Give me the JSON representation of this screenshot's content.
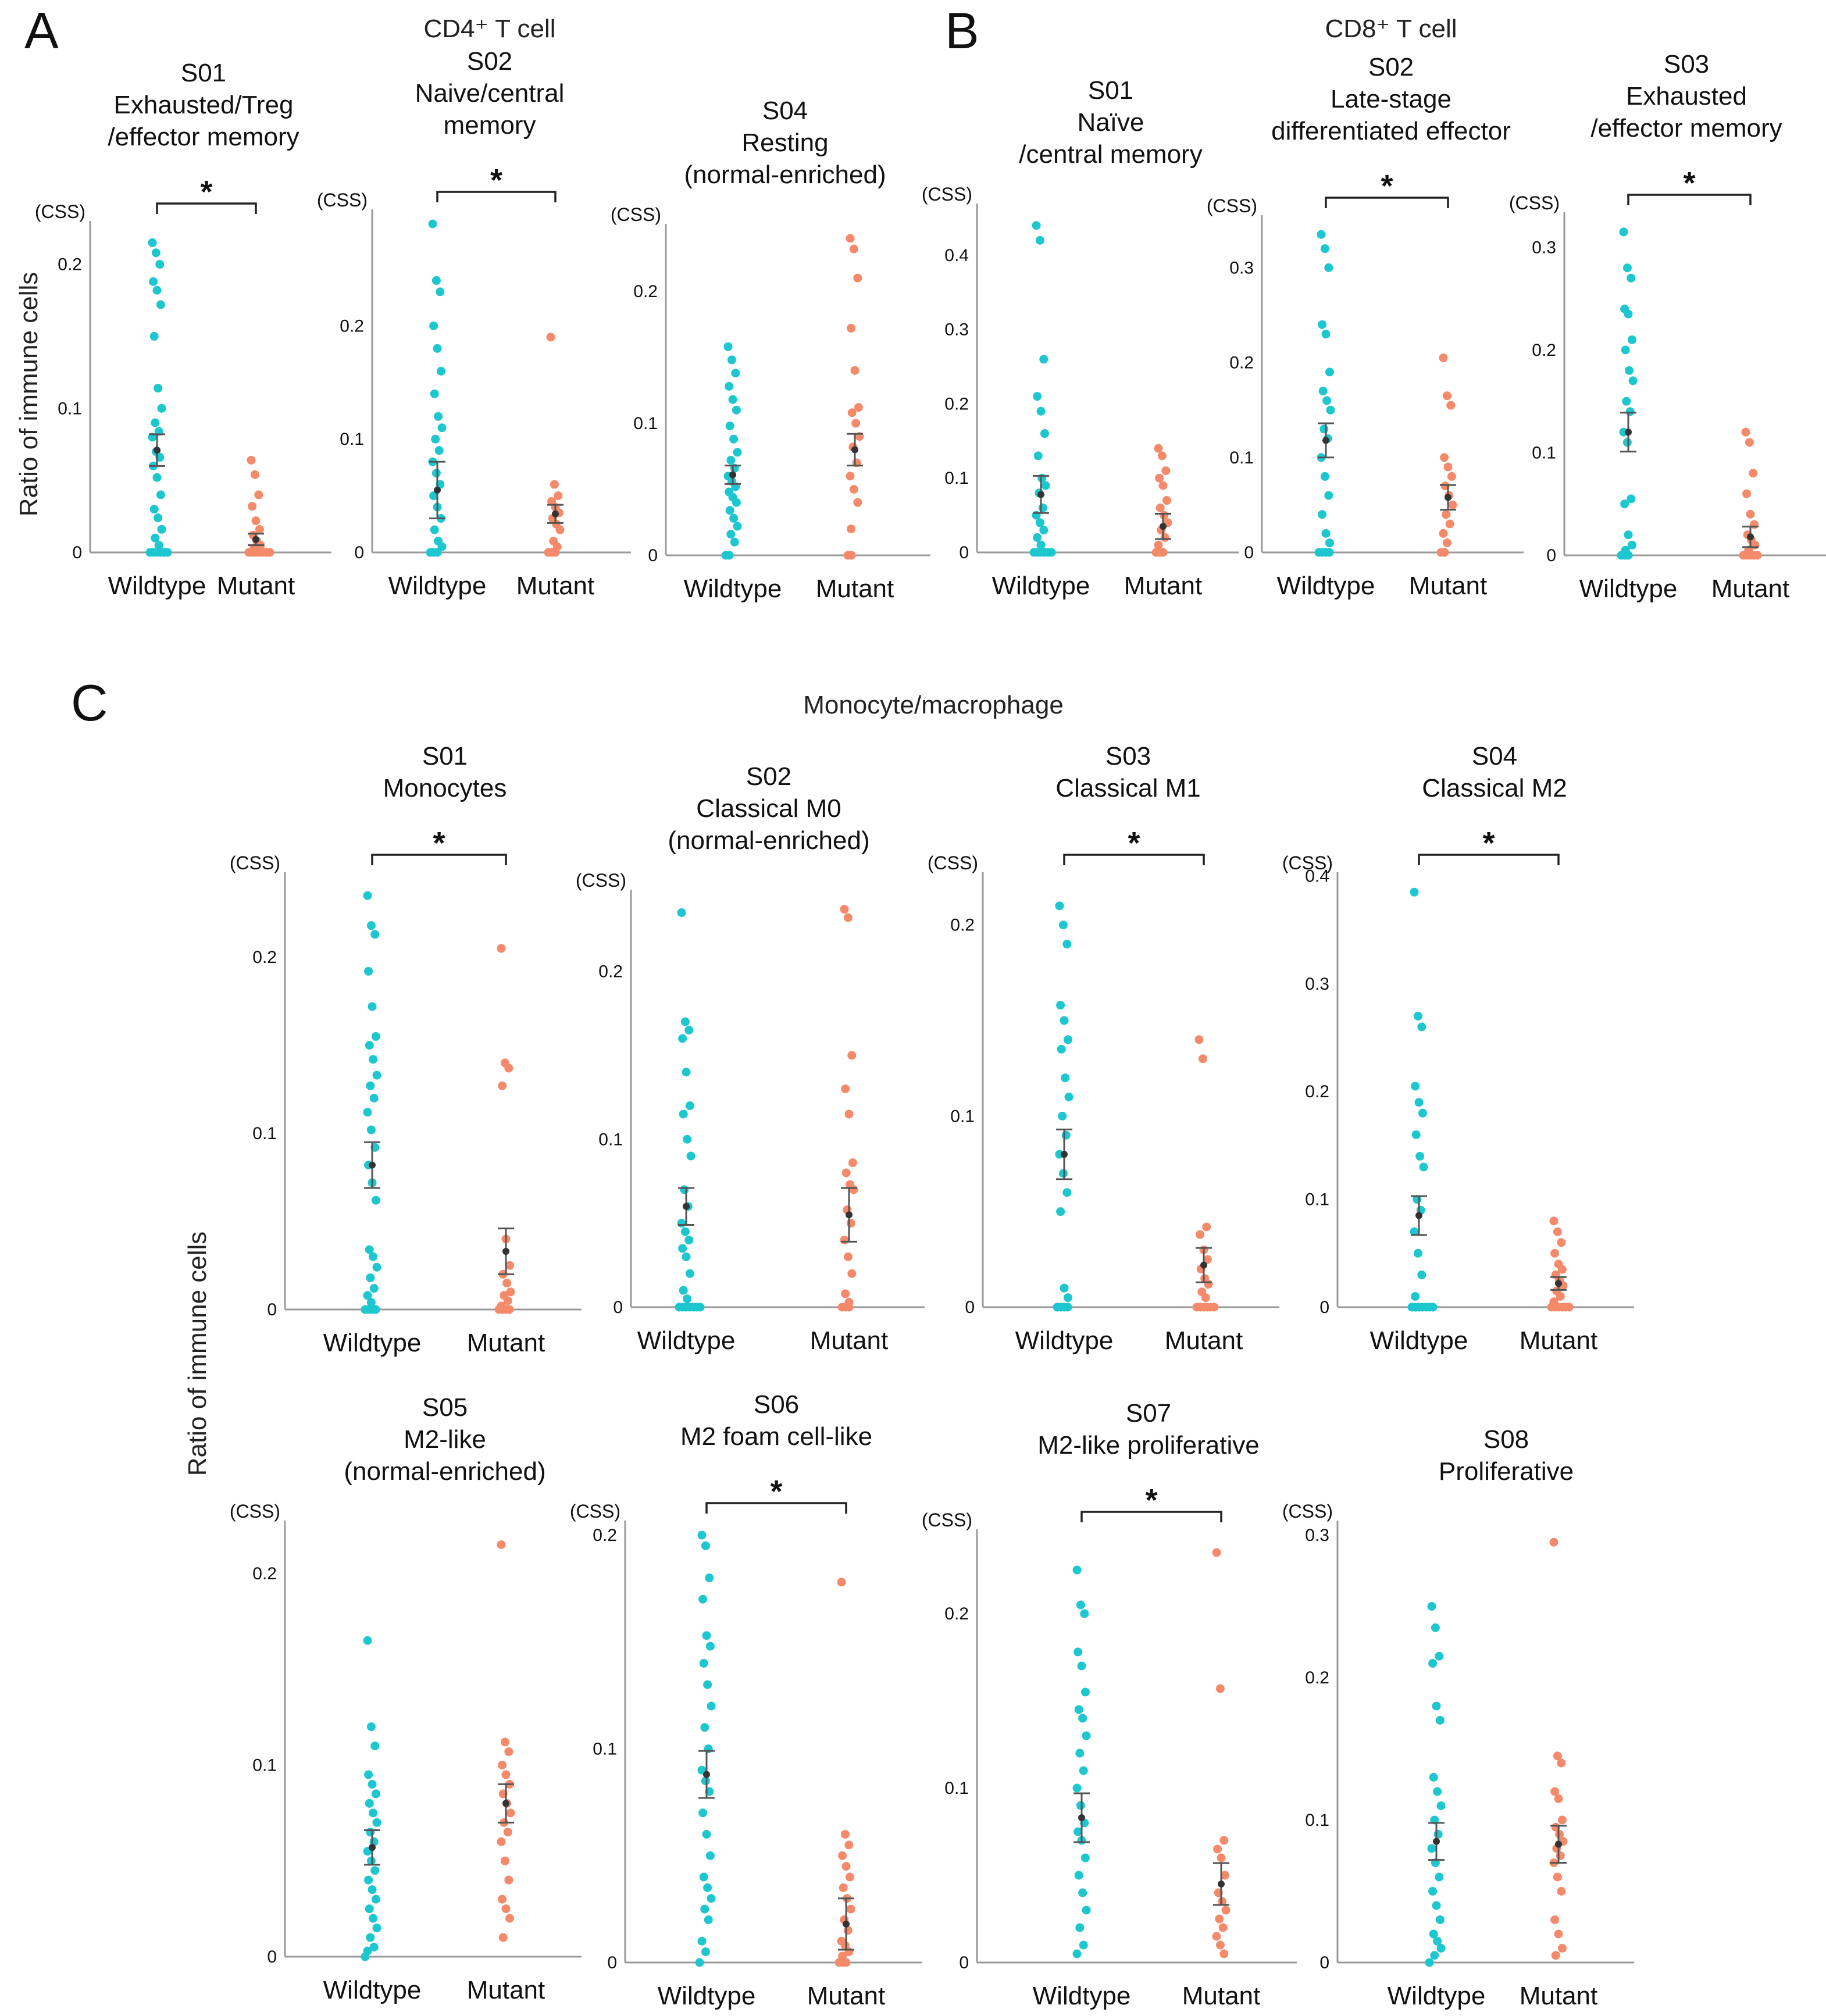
{
  "figure": {
    "panel_letters": [
      "A",
      "B",
      "C"
    ],
    "group_titles": [
      "CD4⁺ T cell",
      "CD8⁺ T cell",
      "Monocyte/macrophage"
    ],
    "y_axis_title": "Ratio of immune cells",
    "unit_label": "(CSS)",
    "categories": [
      "Wildtype",
      "Mutant"
    ],
    "significance_marker": "*",
    "colors": {
      "wildtype": "#1cc7cf",
      "mutant": "#f58a6b",
      "axis": "#999999",
      "errorbar": "#555555"
    }
  },
  "chart_data": [
    {
      "type": "scatter",
      "group": "CD4+ T cell",
      "title": [
        "S01",
        "Exhausted/Treg",
        "/effector memory"
      ],
      "ylim": [
        0,
        0.22
      ],
      "yticks": [
        {
          "v": 0,
          "l": "0"
        },
        {
          "v": 0.1,
          "l": "0.1"
        },
        {
          "v": 0.2,
          "l": "0.2"
        }
      ],
      "significant": true,
      "wildtype": {
        "points": [
          0.215,
          0.208,
          0.2,
          0.188,
          0.182,
          0.172,
          0.15,
          0.114,
          0.1,
          0.09,
          0.084,
          0.08,
          0.07,
          0.066,
          0.06,
          0.052,
          0.04,
          0.03,
          0.024,
          0.016,
          0.01,
          0.005,
          0,
          0,
          0,
          0,
          0,
          0
        ],
        "mean": 0.071,
        "se": 0.011
      },
      "mutant": {
        "points": [
          0.064,
          0.054,
          0.04,
          0.032,
          0.022,
          0.016,
          0.012,
          0.008,
          0.005,
          0.003,
          0,
          0,
          0,
          0,
          0,
          0,
          0,
          0
        ],
        "mean": 0.009,
        "se": 0.004
      }
    },
    {
      "type": "scatter",
      "group": "CD4+ T cell",
      "title": [
        "S02",
        "Naive/central",
        "memory"
      ],
      "ylim": [
        0,
        0.29
      ],
      "yticks": [
        {
          "v": 0,
          "l": "0"
        },
        {
          "v": 0.1,
          "l": "0.1"
        },
        {
          "v": 0.2,
          "l": "0.2"
        }
      ],
      "significant": true,
      "wildtype": {
        "points": [
          0.29,
          0.24,
          0.23,
          0.2,
          0.18,
          0.16,
          0.14,
          0.12,
          0.11,
          0.1,
          0.09,
          0.08,
          0.07,
          0.06,
          0.05,
          0.04,
          0.03,
          0.02,
          0.01,
          0.005,
          0,
          0,
          0
        ],
        "mean": 0.055,
        "se": 0.025
      },
      "mutant": {
        "points": [
          0.19,
          0.06,
          0.05,
          0.045,
          0.04,
          0.035,
          0.03,
          0.025,
          0.02,
          0.01,
          0.005,
          0,
          0,
          0
        ],
        "mean": 0.034,
        "se": 0.008
      }
    },
    {
      "type": "scatter",
      "group": "CD4+ T cell",
      "title": [
        "S04",
        "Resting",
        "(normal-enriched)"
      ],
      "ylim": [
        0,
        0.24
      ],
      "yticks": [
        {
          "v": 0,
          "l": "0"
        },
        {
          "v": 0.1,
          "l": "0.1"
        },
        {
          "v": 0.2,
          "l": "0.2"
        }
      ],
      "significant": false,
      "wildtype": {
        "points": [
          0.158,
          0.148,
          0.138,
          0.128,
          0.118,
          0.11,
          0.098,
          0.088,
          0.078,
          0.072,
          0.066,
          0.06,
          0.056,
          0.052,
          0.048,
          0.044,
          0.04,
          0.034,
          0.028,
          0.022,
          0.016,
          0.01,
          0,
          0
        ],
        "mean": 0.061,
        "se": 0.007
      },
      "mutant": {
        "points": [
          0.24,
          0.232,
          0.21,
          0.172,
          0.14,
          0.112,
          0.108,
          0.1,
          0.09,
          0.082,
          0.07,
          0.06,
          0.05,
          0.04,
          0.02,
          0,
          0
        ],
        "mean": 0.08,
        "se": 0.012
      }
    },
    {
      "type": "scatter",
      "group": "CD8+ T cell",
      "title": [
        "S01",
        "Naïve",
        "/central memory"
      ],
      "ylim": [
        0,
        0.45
      ],
      "yticks": [
        {
          "v": 0,
          "l": "0"
        },
        {
          "v": 0.1,
          "l": "0.1"
        },
        {
          "v": 0.2,
          "l": "0.2"
        },
        {
          "v": 0.3,
          "l": "0.3"
        },
        {
          "v": 0.4,
          "l": "0.4"
        }
      ],
      "significant": false,
      "wildtype": {
        "points": [
          0.44,
          0.42,
          0.26,
          0.21,
          0.19,
          0.16,
          0.13,
          0.1,
          0.09,
          0.08,
          0.06,
          0.05,
          0.04,
          0.03,
          0.02,
          0.01,
          0,
          0,
          0,
          0,
          0,
          0
        ],
        "mean": 0.078,
        "se": 0.025
      },
      "mutant": {
        "points": [
          0.14,
          0.13,
          0.11,
          0.1,
          0.09,
          0.07,
          0.06,
          0.05,
          0.04,
          0.03,
          0.02,
          0.01,
          0,
          0,
          0
        ],
        "mean": 0.035,
        "se": 0.017
      }
    },
    {
      "type": "scatter",
      "group": "CD8+ T cell",
      "title": [
        "S02",
        "Late-stage",
        "differentiated effector"
      ],
      "ylim": [
        0,
        0.34
      ],
      "yticks": [
        {
          "v": 0,
          "l": "0"
        },
        {
          "v": 0.1,
          "l": "0.1"
        },
        {
          "v": 0.2,
          "l": "0.2"
        },
        {
          "v": 0.3,
          "l": "0.3"
        }
      ],
      "significant": true,
      "wildtype": {
        "points": [
          0.335,
          0.32,
          0.3,
          0.24,
          0.23,
          0.19,
          0.17,
          0.16,
          0.15,
          0.13,
          0.12,
          0.1,
          0.08,
          0.06,
          0.04,
          0.02,
          0.01,
          0,
          0,
          0,
          0
        ],
        "mean": 0.118,
        "se": 0.018
      },
      "mutant": {
        "points": [
          0.205,
          0.165,
          0.155,
          0.1,
          0.09,
          0.08,
          0.07,
          0.06,
          0.05,
          0.04,
          0.03,
          0.02,
          0.01,
          0,
          0
        ],
        "mean": 0.058,
        "se": 0.013
      }
    },
    {
      "type": "scatter",
      "group": "CD8+ T cell",
      "title": [
        "S03",
        "Exhausted",
        "/effector memory"
      ],
      "ylim": [
        0,
        0.32
      ],
      "yticks": [
        {
          "v": 0,
          "l": "0"
        },
        {
          "v": 0.1,
          "l": "0.1"
        },
        {
          "v": 0.2,
          "l": "0.2"
        },
        {
          "v": 0.3,
          "l": "0.3"
        }
      ],
      "significant": true,
      "wildtype": {
        "points": [
          0.315,
          0.28,
          0.27,
          0.24,
          0.235,
          0.21,
          0.2,
          0.18,
          0.17,
          0.15,
          0.14,
          0.12,
          0.11,
          0.055,
          0.05,
          0.02,
          0.01,
          0.005,
          0,
          0,
          0
        ],
        "mean": 0.12,
        "se": 0.019
      },
      "mutant": {
        "points": [
          0.12,
          0.11,
          0.08,
          0.06,
          0.04,
          0.03,
          0.02,
          0.015,
          0.01,
          0.005,
          0,
          0,
          0,
          0,
          0
        ],
        "mean": 0.018,
        "se": 0.01
      }
    },
    {
      "type": "scatter",
      "group": "Monocyte/macrophage",
      "title": [
        "S01",
        "Monocytes"
      ],
      "ylim": [
        0,
        0.24
      ],
      "yticks": [
        {
          "v": 0,
          "l": "0"
        },
        {
          "v": 0.1,
          "l": "0.1"
        },
        {
          "v": 0.2,
          "l": "0.2"
        }
      ],
      "significant": true,
      "wildtype": {
        "points": [
          0.235,
          0.218,
          0.213,
          0.192,
          0.172,
          0.155,
          0.15,
          0.142,
          0.133,
          0.127,
          0.12,
          0.112,
          0.102,
          0.092,
          0.082,
          0.072,
          0.062,
          0.034,
          0.03,
          0.024,
          0.018,
          0.012,
          0.008,
          0.004,
          0,
          0,
          0,
          0
        ],
        "mean": 0.082,
        "se": 0.013
      },
      "mutant": {
        "points": [
          0.205,
          0.14,
          0.137,
          0.127,
          0.04,
          0.025,
          0.02,
          0.015,
          0.01,
          0.008,
          0.005,
          0.002,
          0,
          0,
          0,
          0
        ],
        "mean": 0.033,
        "se": 0.013
      }
    },
    {
      "type": "scatter",
      "group": "Monocyte/macrophage",
      "title": [
        "S02",
        "Classical M0",
        "(normal-enriched)"
      ],
      "ylim": [
        0,
        0.24
      ],
      "yticks": [
        {
          "v": 0,
          "l": "0"
        },
        {
          "v": 0.1,
          "l": "0.1"
        },
        {
          "v": 0.2,
          "l": "0.2"
        }
      ],
      "significant": false,
      "wildtype": {
        "points": [
          0.235,
          0.17,
          0.165,
          0.16,
          0.14,
          0.12,
          0.115,
          0.1,
          0.09,
          0.07,
          0.06,
          0.05,
          0.045,
          0.04,
          0.035,
          0.03,
          0.02,
          0.01,
          0.005,
          0,
          0,
          0,
          0,
          0,
          0,
          0
        ],
        "mean": 0.06,
        "se": 0.011
      },
      "mutant": {
        "points": [
          0.237,
          0.232,
          0.15,
          0.13,
          0.115,
          0.086,
          0.08,
          0.073,
          0.07,
          0.058,
          0.05,
          0.04,
          0.03,
          0.02,
          0.008,
          0.003,
          0,
          0,
          0
        ],
        "mean": 0.055,
        "se": 0.016
      }
    },
    {
      "type": "scatter",
      "group": "Monocyte/macrophage",
      "title": [
        "S03",
        "Classical M1"
      ],
      "ylim": [
        0,
        0.22
      ],
      "yticks": [
        {
          "v": 0,
          "l": "0"
        },
        {
          "v": 0.1,
          "l": "0.1"
        },
        {
          "v": 0.2,
          "l": "0.2"
        }
      ],
      "significant": true,
      "wildtype": {
        "points": [
          0.21,
          0.2,
          0.19,
          0.158,
          0.15,
          0.14,
          0.135,
          0.12,
          0.11,
          0.1,
          0.09,
          0.08,
          0.07,
          0.06,
          0.05,
          0.01,
          0.005,
          0,
          0,
          0,
          0
        ],
        "mean": 0.08,
        "se": 0.013
      },
      "mutant": {
        "points": [
          0.14,
          0.13,
          0.042,
          0.038,
          0.03,
          0.025,
          0.02,
          0.015,
          0.012,
          0.008,
          0.005,
          0,
          0,
          0,
          0,
          0,
          0
        ],
        "mean": 0.022,
        "se": 0.009
      }
    },
    {
      "type": "scatter",
      "group": "Monocyte/macrophage",
      "title": [
        "S04",
        "Classical M2"
      ],
      "ylim": [
        0,
        0.39
      ],
      "yticks": [
        {
          "v": 0,
          "l": "0"
        },
        {
          "v": 0.1,
          "l": "0.1"
        },
        {
          "v": 0.2,
          "l": "0.2"
        },
        {
          "v": 0.3,
          "l": "0.3"
        },
        {
          "v": 0.4,
          "l": "0.4"
        }
      ],
      "significant": true,
      "wildtype": {
        "points": [
          0.385,
          0.27,
          0.26,
          0.205,
          0.19,
          0.18,
          0.16,
          0.14,
          0.13,
          0.1,
          0.09,
          0.07,
          0.05,
          0.03,
          0.01,
          0,
          0,
          0,
          0,
          0,
          0,
          0,
          0,
          0
        ],
        "mean": 0.085,
        "se": 0.018
      },
      "mutant": {
        "points": [
          0.08,
          0.07,
          0.06,
          0.05,
          0.04,
          0.035,
          0.03,
          0.025,
          0.02,
          0.015,
          0.01,
          0.005,
          0,
          0,
          0,
          0,
          0,
          0
        ],
        "mean": 0.022,
        "se": 0.006
      }
    },
    {
      "type": "scatter",
      "group": "Monocyte/macrophage",
      "title": [
        "S05",
        "M2-like",
        "(normal-enriched)"
      ],
      "ylim": [
        0,
        0.22
      ],
      "yticks": [
        {
          "v": 0,
          "l": "0"
        },
        {
          "v": 0.1,
          "l": "0.1"
        },
        {
          "v": 0.2,
          "l": "0.2"
        }
      ],
      "significant": false,
      "wildtype": {
        "points": [
          0.165,
          0.12,
          0.11,
          0.095,
          0.09,
          0.085,
          0.08,
          0.075,
          0.07,
          0.065,
          0.06,
          0.055,
          0.05,
          0.045,
          0.04,
          0.035,
          0.03,
          0.025,
          0.02,
          0.015,
          0.01,
          0.005,
          0.003,
          0
        ],
        "mean": 0.057,
        "se": 0.009
      },
      "mutant": {
        "points": [
          0.215,
          0.112,
          0.107,
          0.1,
          0.095,
          0.09,
          0.085,
          0.08,
          0.075,
          0.07,
          0.065,
          0.06,
          0.05,
          0.04,
          0.03,
          0.025,
          0.02,
          0.01
        ],
        "mean": 0.08,
        "se": 0.01
      }
    },
    {
      "type": "scatter",
      "group": "Monocyte/macrophage",
      "title": [
        "S06",
        "M2 foam cell-like"
      ],
      "ylim": [
        0,
        0.2
      ],
      "yticks": [
        {
          "v": 0,
          "l": "0"
        },
        {
          "v": 0.1,
          "l": "0.1"
        },
        {
          "v": 0.2,
          "l": "0.2"
        }
      ],
      "significant": true,
      "wildtype": {
        "points": [
          0.2,
          0.195,
          0.18,
          0.17,
          0.153,
          0.148,
          0.14,
          0.13,
          0.12,
          0.11,
          0.1,
          0.09,
          0.085,
          0.08,
          0.07,
          0.06,
          0.05,
          0.04,
          0.035,
          0.03,
          0.025,
          0.02,
          0.01,
          0.005,
          0
        ],
        "mean": 0.088,
        "se": 0.011
      },
      "mutant": {
        "points": [
          0.178,
          0.06,
          0.055,
          0.05,
          0.045,
          0.04,
          0.035,
          0.03,
          0.025,
          0.02,
          0.015,
          0.01,
          0.008,
          0.005,
          0.003,
          0,
          0,
          0
        ],
        "mean": 0.018,
        "se": 0.012
      }
    },
    {
      "type": "scatter",
      "group": "Monocyte/macrophage",
      "title": [
        "S07",
        "M2-like proliferative"
      ],
      "ylim": [
        0,
        0.24
      ],
      "yticks": [
        {
          "v": 0,
          "l": "0"
        },
        {
          "v": 0.1,
          "l": "0.1"
        },
        {
          "v": 0.2,
          "l": "0.2"
        }
      ],
      "significant": true,
      "wildtype": {
        "points": [
          0.225,
          0.205,
          0.2,
          0.178,
          0.17,
          0.155,
          0.145,
          0.14,
          0.13,
          0.12,
          0.11,
          0.1,
          0.09,
          0.08,
          0.075,
          0.07,
          0.06,
          0.05,
          0.04,
          0.03,
          0.02,
          0.01,
          0.005
        ],
        "mean": 0.083,
        "se": 0.014
      },
      "mutant": {
        "points": [
          0.235,
          0.157,
          0.07,
          0.065,
          0.06,
          0.05,
          0.04,
          0.035,
          0.03,
          0.025,
          0.02,
          0.015,
          0.01,
          0.005
        ],
        "mean": 0.045,
        "se": 0.012
      }
    },
    {
      "type": "scatter",
      "group": "Monocyte/macrophage",
      "title": [
        "S08",
        "Proliferative"
      ],
      "ylim": [
        0,
        0.3
      ],
      "yticks": [
        {
          "v": 0,
          "l": "0"
        },
        {
          "v": 0.1,
          "l": "0.1"
        },
        {
          "v": 0.2,
          "l": "0.2"
        },
        {
          "v": 0.3,
          "l": "0.3"
        }
      ],
      "significant": false,
      "wildtype": {
        "points": [
          0.25,
          0.235,
          0.215,
          0.21,
          0.18,
          0.17,
          0.13,
          0.12,
          0.11,
          0.1,
          0.09,
          0.08,
          0.07,
          0.06,
          0.05,
          0.04,
          0.03,
          0.02,
          0.015,
          0.01,
          0.005,
          0
        ],
        "mean": 0.085,
        "se": 0.013
      },
      "mutant": {
        "points": [
          0.295,
          0.145,
          0.14,
          0.12,
          0.115,
          0.1,
          0.095,
          0.09,
          0.085,
          0.08,
          0.075,
          0.07,
          0.06,
          0.05,
          0.03,
          0.02,
          0.01,
          0.005
        ],
        "mean": 0.083,
        "se": 0.013
      }
    }
  ]
}
